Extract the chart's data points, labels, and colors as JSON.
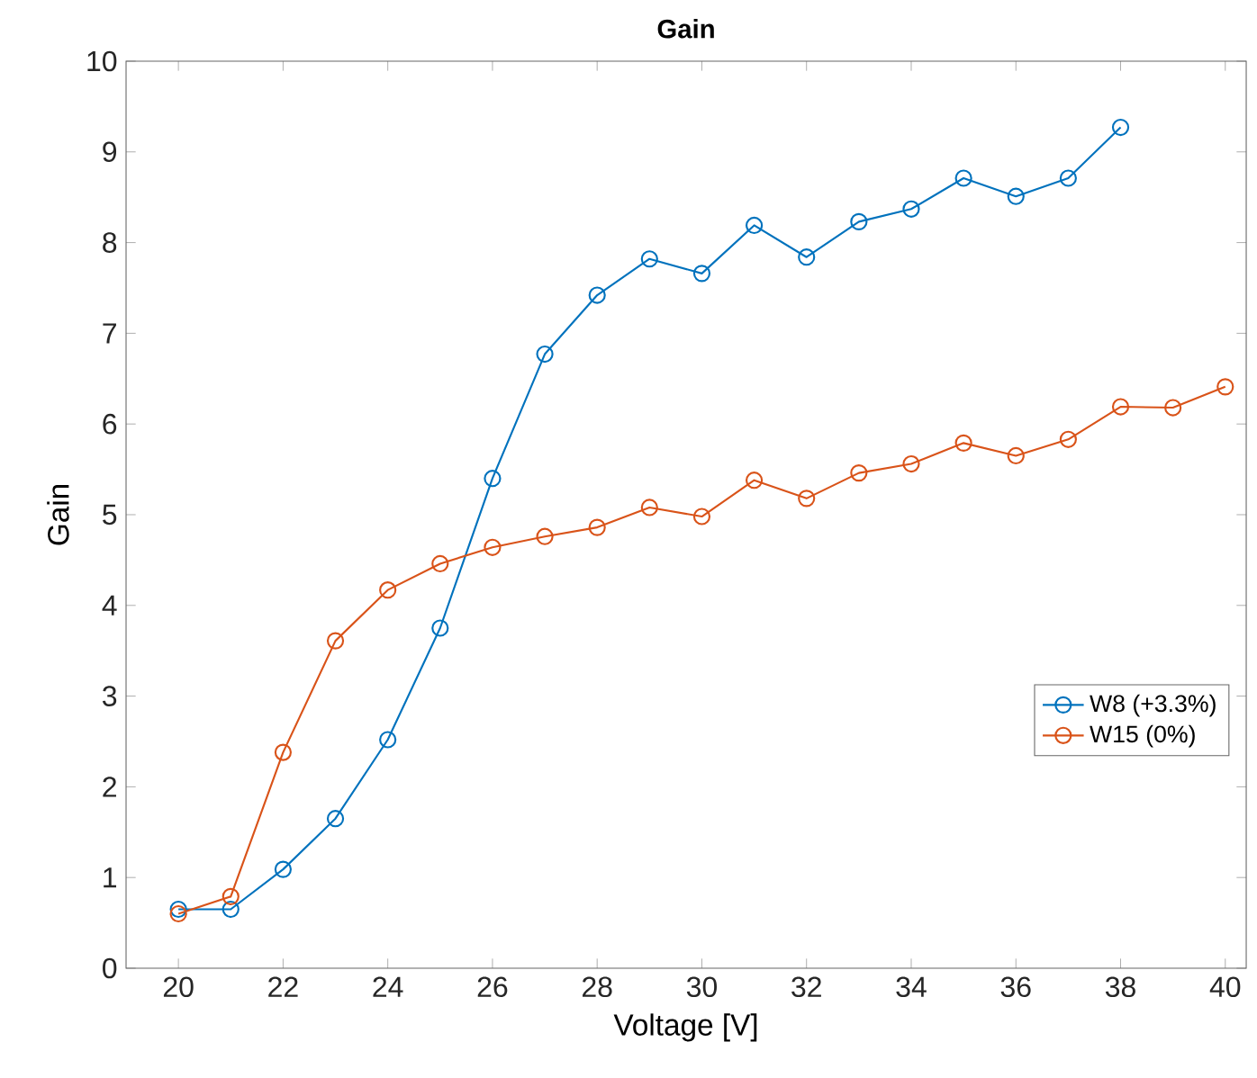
{
  "chart_data": {
    "type": "line",
    "title": "Gain",
    "xlabel": "Voltage [V]",
    "ylabel": "Gain",
    "x": [
      20,
      21,
      22,
      23,
      24,
      25,
      26,
      27,
      28,
      29,
      30,
      31,
      32,
      33,
      34,
      35,
      36,
      37,
      38,
      39,
      40
    ],
    "series": [
      {
        "name": "W8 (+3.3%)",
        "color": "#0072bd",
        "x": [
          20,
          21,
          22,
          23,
          24,
          25,
          26,
          27,
          28,
          29,
          30,
          31,
          32,
          33,
          34,
          35,
          36,
          37,
          38
        ],
        "values": [
          0.65,
          0.65,
          1.09,
          1.65,
          2.52,
          3.75,
          5.4,
          6.77,
          7.42,
          7.82,
          7.66,
          8.19,
          7.84,
          8.23,
          8.37,
          8.71,
          8.51,
          8.71,
          9.27
        ]
      },
      {
        "name": "W15 (0%)",
        "color": "#d95319",
        "values": [
          0.6,
          0.79,
          2.38,
          3.61,
          4.17,
          4.46,
          4.64,
          4.76,
          4.86,
          5.08,
          4.98,
          5.38,
          5.18,
          5.46,
          5.56,
          5.79,
          5.65,
          5.83,
          6.19,
          6.18,
          6.41
        ]
      }
    ],
    "xlim": [
      19,
      40.4
    ],
    "ylim": [
      0,
      10
    ],
    "xticks": [
      20,
      22,
      24,
      26,
      28,
      30,
      32,
      34,
      36,
      38,
      40
    ],
    "yticks": [
      0,
      1,
      2,
      3,
      4,
      5,
      6,
      7,
      8,
      9,
      10
    ],
    "marker": "circle",
    "line_style": "solid",
    "grid": false,
    "legend": "right"
  }
}
